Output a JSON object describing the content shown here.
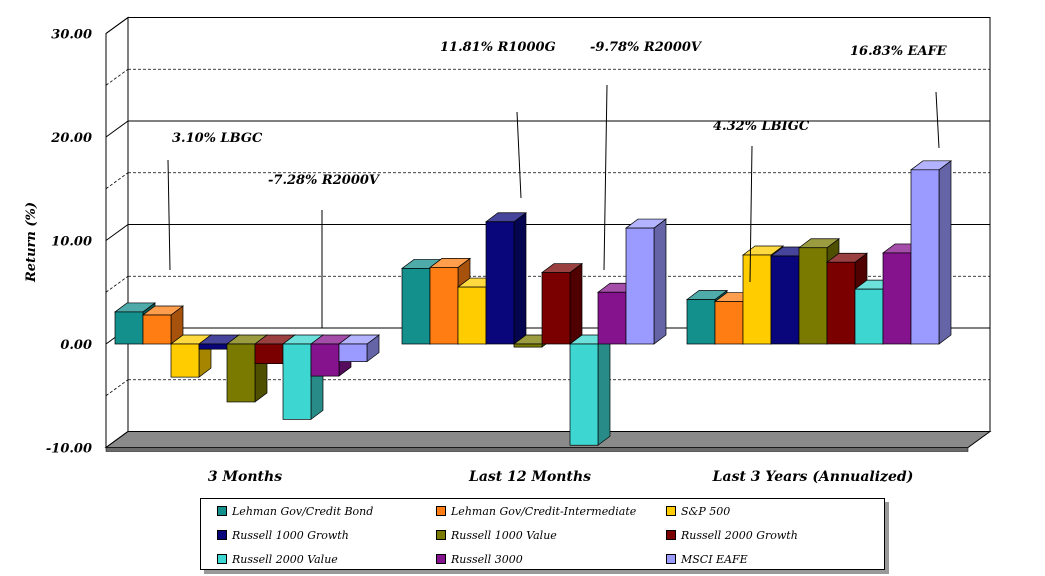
{
  "chart_data": {
    "type": "bar",
    "ylabel": "Return (%)",
    "ylim": [
      -10,
      30
    ],
    "yticks": [
      "30.00",
      "20.00",
      "10.00",
      "0.00",
      "-10.00"
    ],
    "grid": true,
    "categories": [
      "3 Months",
      "Last 12 Months",
      "Last 3 Years (Annualized)"
    ],
    "series": [
      {
        "name": "Lehman Gov/Credit Bond",
        "color": "#138f8c",
        "values": [
          3.1,
          7.3,
          4.3
        ]
      },
      {
        "name": "Lehman Gov/Credit-Intermediate",
        "color": "#ff7d12",
        "values": [
          2.8,
          7.4,
          4.1
        ]
      },
      {
        "name": "S&P 500",
        "color": "#ffcc00",
        "values": [
          -3.2,
          5.5,
          8.6
        ]
      },
      {
        "name": "Russell 1000 Growth",
        "color": "#08067a",
        "values": [
          -0.5,
          11.81,
          8.5
        ]
      },
      {
        "name": "Russell 1000 Value",
        "color": "#7a7a00",
        "values": [
          -5.6,
          -0.3,
          9.3
        ]
      },
      {
        "name": "Russell 2000 Growth",
        "color": "#7a0000",
        "values": [
          -1.9,
          6.9,
          7.9
        ]
      },
      {
        "name": "Russell 2000 Value",
        "color": "#3dd6d0",
        "values": [
          -7.28,
          -9.78,
          5.3
        ]
      },
      {
        "name": "Russell 3000",
        "color": "#85138d",
        "values": [
          -3.1,
          5.0,
          8.8
        ]
      },
      {
        "name": "MSCI EAFE",
        "color": "#9a9aff",
        "values": [
          -1.7,
          11.2,
          16.83
        ]
      }
    ],
    "annotations": [
      {
        "text": "3.10% LBGC",
        "category": 0,
        "series": 0
      },
      {
        "text": "-7.28% R2000V",
        "category": 0,
        "series": 6
      },
      {
        "text": "11.81% R1000G",
        "category": 1,
        "series": 3
      },
      {
        "text": "-9.78% R2000V",
        "category": 1,
        "series": 6
      },
      {
        "text": "4.32% LBIGC",
        "category": 2,
        "series": 0
      },
      {
        "text": "16.83% EAFE",
        "category": 2,
        "series": 8
      }
    ],
    "legend_position": "bottom"
  }
}
